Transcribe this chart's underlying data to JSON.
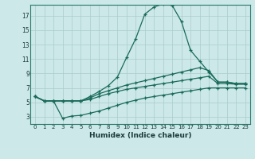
{
  "xlabel": "Humidex (Indice chaleur)",
  "background_color": "#cce8e8",
  "grid_color": "#aacccc",
  "line_color": "#1a6b5a",
  "xlim": [
    -0.5,
    23.5
  ],
  "ylim": [
    2.0,
    18.5
  ],
  "xticks": [
    0,
    1,
    2,
    3,
    4,
    5,
    6,
    7,
    8,
    9,
    10,
    11,
    12,
    13,
    14,
    15,
    16,
    17,
    18,
    19,
    20,
    21,
    22,
    23
  ],
  "yticks": [
    3,
    5,
    7,
    9,
    11,
    13,
    15,
    17
  ],
  "line1_x": [
    0,
    1,
    2,
    3,
    4,
    5,
    6,
    7,
    8,
    9,
    10,
    11,
    12,
    13,
    14,
    15,
    16,
    17,
    18,
    19,
    20,
    21,
    22,
    23
  ],
  "line1_y": [
    5.8,
    5.2,
    5.2,
    5.2,
    5.2,
    5.2,
    5.8,
    6.5,
    7.3,
    8.5,
    11.2,
    13.8,
    17.2,
    18.2,
    18.6,
    18.4,
    16.2,
    12.2,
    10.7,
    9.2,
    7.8,
    7.8,
    7.6,
    7.6
  ],
  "line2_x": [
    0,
    1,
    2,
    3,
    4,
    5,
    6,
    7,
    8,
    9,
    10,
    11,
    12,
    13,
    14,
    15,
    16,
    17,
    18,
    19,
    20,
    21,
    22,
    23
  ],
  "line2_y": [
    5.8,
    5.2,
    5.2,
    5.2,
    5.2,
    5.2,
    5.6,
    6.2,
    6.6,
    7.0,
    7.4,
    7.7,
    8.0,
    8.3,
    8.6,
    8.9,
    9.2,
    9.5,
    9.8,
    9.4,
    7.8,
    7.8,
    7.6,
    7.6
  ],
  "line3_x": [
    0,
    1,
    2,
    3,
    4,
    5,
    6,
    7,
    8,
    9,
    10,
    11,
    12,
    13,
    14,
    15,
    16,
    17,
    18,
    19,
    20,
    21,
    22,
    23
  ],
  "line3_y": [
    5.8,
    5.2,
    5.2,
    5.2,
    5.2,
    5.2,
    5.4,
    5.8,
    6.2,
    6.5,
    6.8,
    7.0,
    7.2,
    7.4,
    7.6,
    7.8,
    8.0,
    8.2,
    8.4,
    8.6,
    7.6,
    7.6,
    7.5,
    7.5
  ],
  "line4_x": [
    0,
    1,
    2,
    3,
    4,
    5,
    6,
    7,
    8,
    9,
    10,
    11,
    12,
    13,
    14,
    15,
    16,
    17,
    18,
    19,
    20,
    21,
    22,
    23
  ],
  "line4_y": [
    5.8,
    5.2,
    5.2,
    2.8,
    3.1,
    3.2,
    3.5,
    3.8,
    4.2,
    4.6,
    5.0,
    5.3,
    5.6,
    5.8,
    6.0,
    6.2,
    6.4,
    6.6,
    6.8,
    7.0,
    7.0,
    7.0,
    7.0,
    7.0
  ]
}
